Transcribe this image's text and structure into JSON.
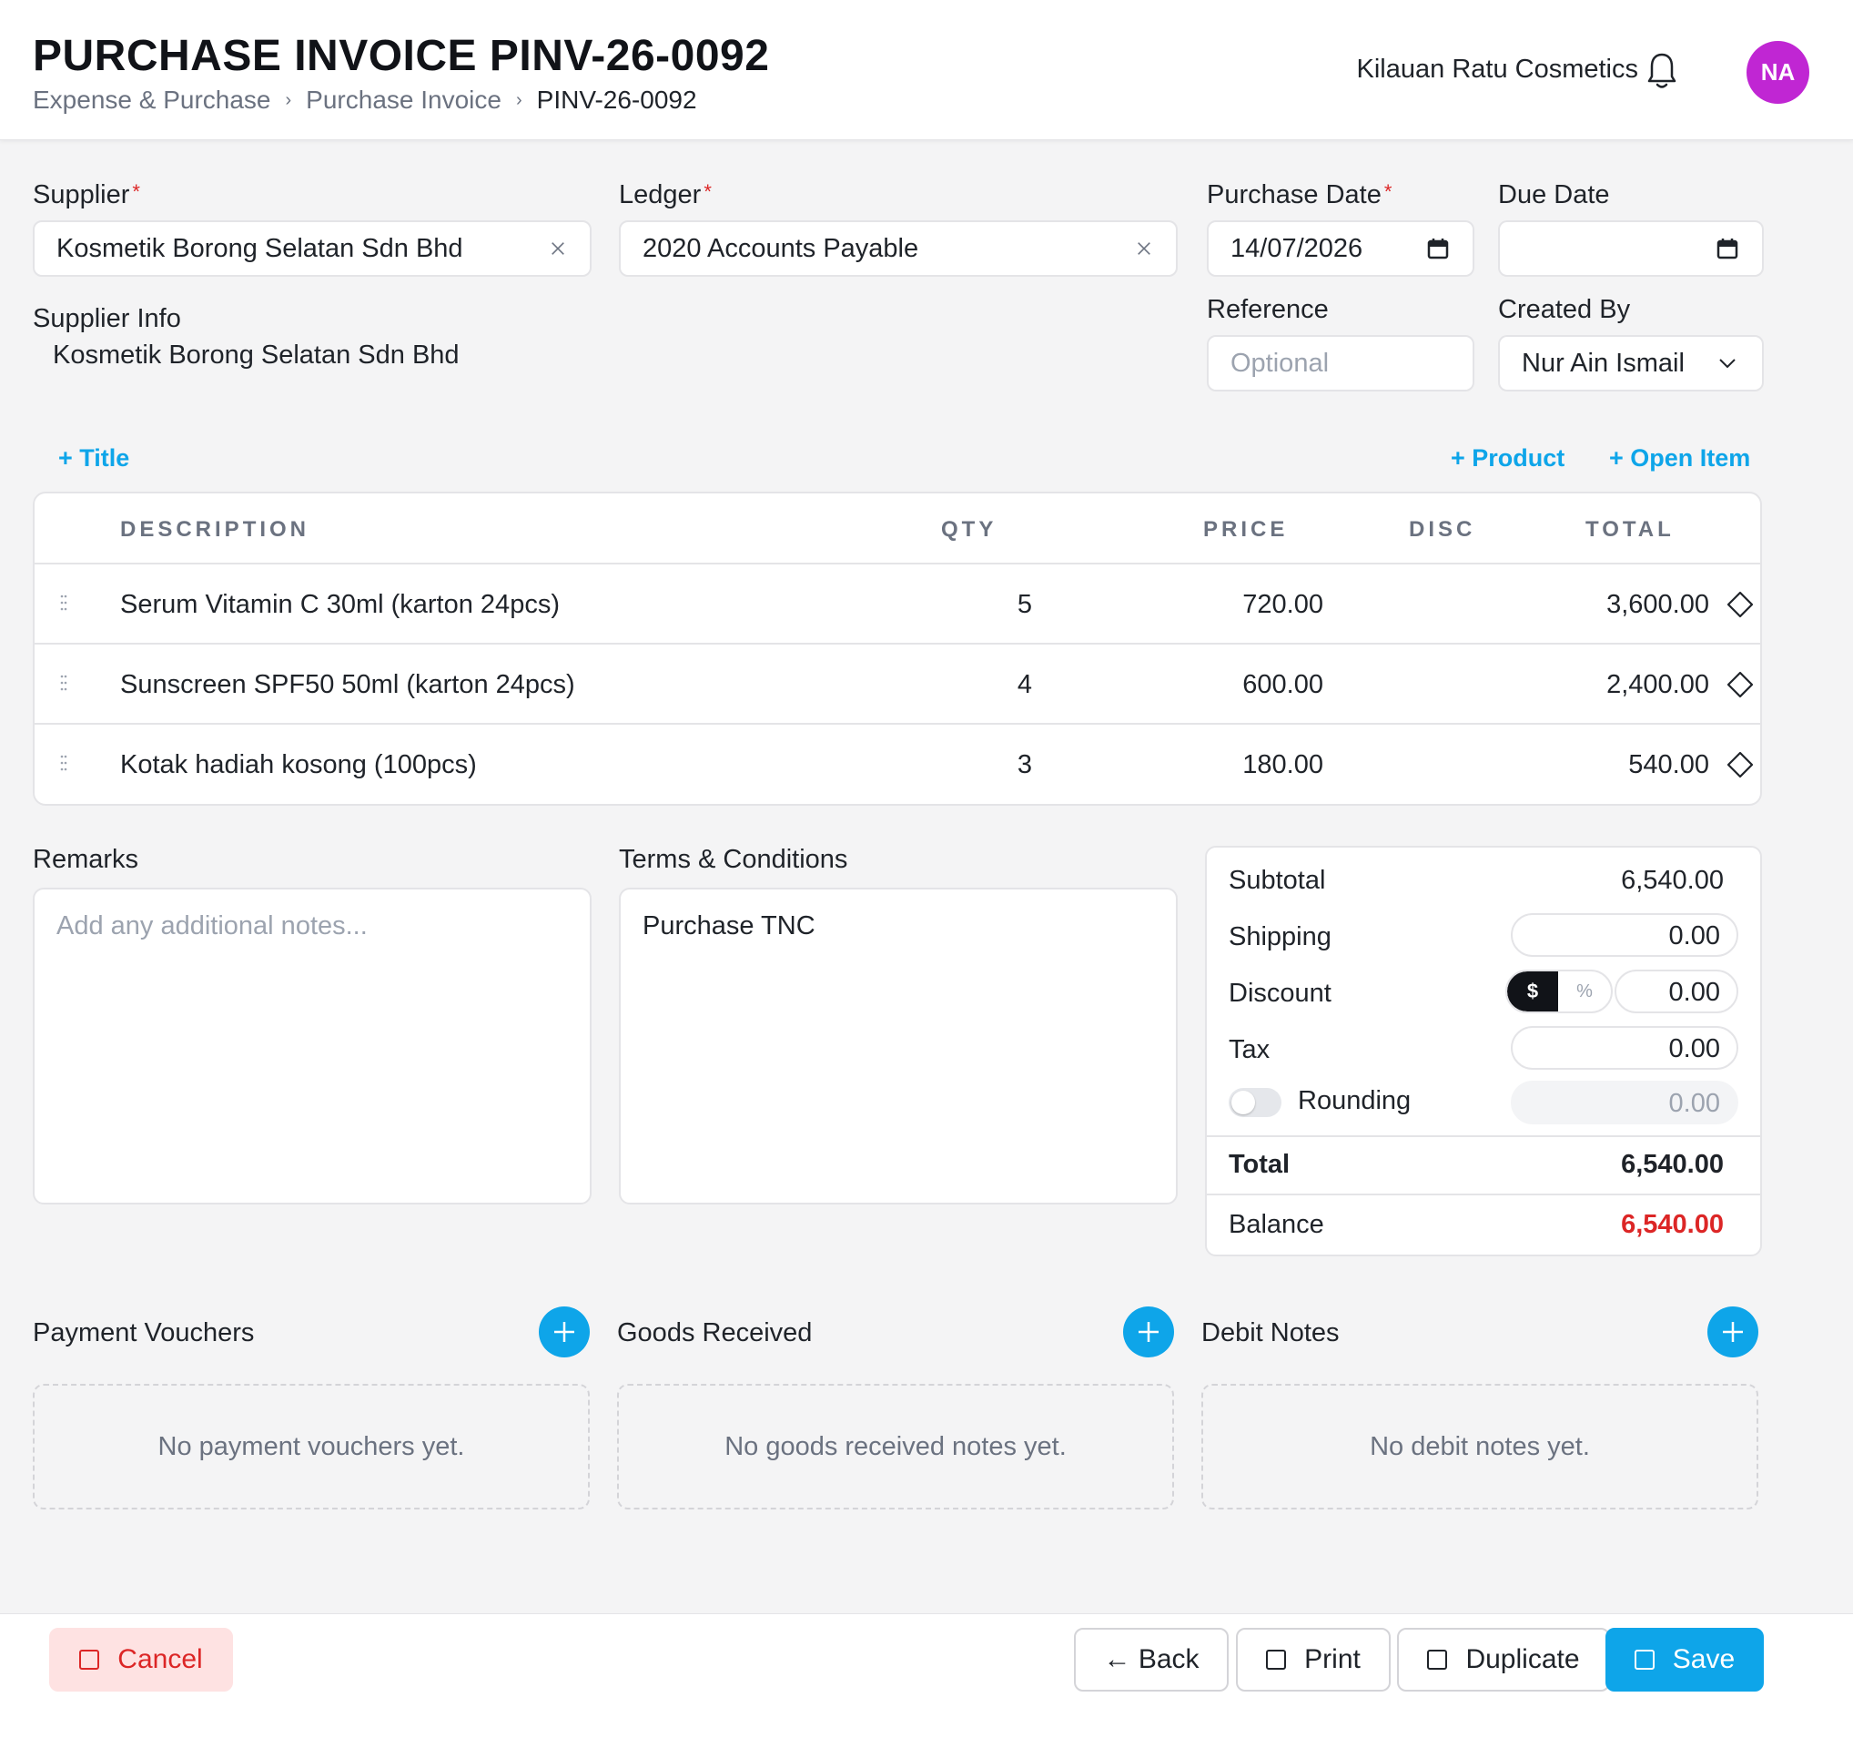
{
  "header": {
    "title": "PURCHASE INVOICE PINV-26-0092",
    "breadcrumb": [
      "Expense & Purchase",
      "Purchase Invoice",
      "PINV-26-0092"
    ],
    "company": "Kilauan Ratu Cosmetics",
    "avatar_initials": "NA",
    "avatar_color": "#c026d3"
  },
  "form": {
    "supplier_label": "Supplier",
    "supplier_value": "Kosmetik Borong Selatan Sdn Bhd",
    "ledger_label": "Ledger",
    "ledger_value": "2020 Accounts Payable",
    "purchase_date_label": "Purchase Date",
    "purchase_date_value": "14/07/2026",
    "due_date_label": "Due Date",
    "due_date_value": "",
    "reference_label": "Reference",
    "reference_placeholder": "Optional",
    "created_by_label": "Created By",
    "created_by_value": "Nur Ain Ismail",
    "supplier_info_label": "Supplier Info",
    "supplier_info_value": "Kosmetik Borong Selatan Sdn Bhd",
    "required_mark": "*"
  },
  "actions": {
    "add_title": "+ Title",
    "add_product": "+ Product",
    "add_open_item": "+ Open Item"
  },
  "table": {
    "headers": {
      "description": "DESCRIPTION",
      "qty": "QTY",
      "price": "PRICE",
      "disc": "DISC",
      "total": "TOTAL"
    },
    "rows": [
      {
        "description": "Serum Vitamin C 30ml (karton 24pcs)",
        "qty": "5",
        "price": "720.00",
        "disc": "",
        "total": "3,600.00"
      },
      {
        "description": "Sunscreen SPF50 50ml (karton 24pcs)",
        "qty": "4",
        "price": "600.00",
        "disc": "",
        "total": "2,400.00"
      },
      {
        "description": "Kotak hadiah kosong (100pcs)",
        "qty": "3",
        "price": "180.00",
        "disc": "",
        "total": "540.00"
      }
    ]
  },
  "remarks": {
    "label": "Remarks",
    "placeholder": "Add any additional notes...",
    "terms_label": "Terms & Conditions",
    "terms_value": "Purchase TNC"
  },
  "summary": {
    "subtotal_label": "Subtotal",
    "subtotal_value": "6,540.00",
    "shipping_label": "Shipping",
    "shipping_value": "0.00",
    "discount_label": "Discount",
    "discount_mode_amount": "$",
    "discount_mode_percent": "%",
    "discount_value": "0.00",
    "tax_label": "Tax",
    "tax_value": "0.00",
    "rounding_label": "Rounding",
    "rounding_value": "0.00",
    "rounding_enabled": false,
    "total_label": "Total",
    "total_value": "6,540.00",
    "balance_label": "Balance",
    "balance_value": "6,540.00",
    "balance_color": "#dc2626"
  },
  "sections": [
    {
      "title": "Payment Vouchers",
      "empty": "No payment vouchers yet."
    },
    {
      "title": "Goods Received",
      "empty": "No goods received notes yet."
    },
    {
      "title": "Debit Notes",
      "empty": "No debit notes yet."
    }
  ],
  "footer": {
    "cancel": "Cancel",
    "back": "← Back",
    "print": "Print",
    "duplicate": "Duplicate",
    "save": "Save"
  },
  "colors": {
    "accent": "#0ea5e9",
    "danger": "#dc2626"
  }
}
